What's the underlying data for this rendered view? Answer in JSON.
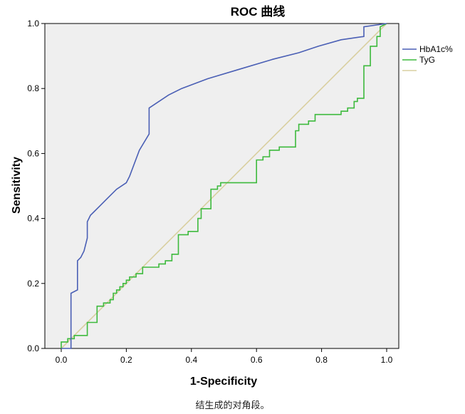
{
  "chart_data": {
    "type": "line",
    "title": "ROC 曲线",
    "xlabel": "1-Specificity",
    "ylabel": "Sensitivity",
    "xlim": [
      0,
      1
    ],
    "ylim": [
      0,
      1
    ],
    "xticks": [
      "0.0",
      "0.2",
      "0.4",
      "0.6",
      "0.8",
      "1.0"
    ],
    "yticks": [
      "0.0",
      "0.2",
      "0.4",
      "0.6",
      "0.8",
      "1.0"
    ],
    "grid": false,
    "legend_position": "right",
    "background": "#efefef",
    "series": [
      {
        "name": "HbA1c%",
        "color": "#4a5fb5",
        "x": [
          0,
          0.03,
          0.03,
          0.03,
          0.05,
          0.05,
          0.06,
          0.07,
          0.08,
          0.08,
          0.09,
          0.1,
          0.12,
          0.14,
          0.17,
          0.2,
          0.21,
          0.24,
          0.27,
          0.27,
          0.3,
          0.33,
          0.37,
          0.45,
          0.55,
          0.65,
          0.73,
          0.79,
          0.86,
          0.93,
          0.93,
          1.0
        ],
        "y": [
          0,
          0,
          0.04,
          0.17,
          0.18,
          0.27,
          0.28,
          0.3,
          0.34,
          0.39,
          0.41,
          0.42,
          0.44,
          0.46,
          0.49,
          0.51,
          0.53,
          0.61,
          0.66,
          0.74,
          0.76,
          0.78,
          0.8,
          0.83,
          0.86,
          0.89,
          0.91,
          0.93,
          0.95,
          0.96,
          0.99,
          1.0
        ]
      },
      {
        "name": "TyG",
        "color": "#3dba3d",
        "x": [
          0,
          0,
          0.02,
          0.02,
          0.04,
          0.04,
          0.08,
          0.08,
          0.11,
          0.11,
          0.13,
          0.13,
          0.15,
          0.15,
          0.16,
          0.16,
          0.17,
          0.17,
          0.18,
          0.18,
          0.19,
          0.19,
          0.2,
          0.2,
          0.21,
          0.21,
          0.23,
          0.23,
          0.25,
          0.25,
          0.3,
          0.3,
          0.32,
          0.32,
          0.34,
          0.34,
          0.36,
          0.36,
          0.39,
          0.39,
          0.42,
          0.42,
          0.43,
          0.43,
          0.46,
          0.46,
          0.48,
          0.48,
          0.49,
          0.49,
          0.6,
          0.6,
          0.62,
          0.62,
          0.64,
          0.64,
          0.67,
          0.67,
          0.72,
          0.72,
          0.73,
          0.73,
          0.76,
          0.76,
          0.78,
          0.78,
          0.86,
          0.86,
          0.88,
          0.88,
          0.9,
          0.9,
          0.91,
          0.91,
          0.93,
          0.93,
          0.95,
          0.95,
          0.97,
          0.97,
          0.98,
          0.98,
          1.0
        ],
        "y": [
          0,
          0.02,
          0.02,
          0.03,
          0.03,
          0.04,
          0.04,
          0.08,
          0.08,
          0.13,
          0.13,
          0.14,
          0.14,
          0.15,
          0.15,
          0.17,
          0.17,
          0.18,
          0.18,
          0.19,
          0.19,
          0.2,
          0.2,
          0.21,
          0.21,
          0.22,
          0.22,
          0.23,
          0.23,
          0.25,
          0.25,
          0.26,
          0.26,
          0.27,
          0.27,
          0.29,
          0.29,
          0.35,
          0.35,
          0.36,
          0.36,
          0.4,
          0.4,
          0.43,
          0.43,
          0.49,
          0.49,
          0.5,
          0.5,
          0.51,
          0.51,
          0.58,
          0.58,
          0.59,
          0.59,
          0.61,
          0.61,
          0.62,
          0.62,
          0.67,
          0.67,
          0.69,
          0.69,
          0.7,
          0.7,
          0.72,
          0.72,
          0.73,
          0.73,
          0.74,
          0.74,
          0.76,
          0.76,
          0.77,
          0.77,
          0.87,
          0.87,
          0.93,
          0.93,
          0.96,
          0.96,
          0.99,
          1.0
        ]
      },
      {
        "name": "",
        "color": "#d9cfa0",
        "x": [
          0,
          1
        ],
        "y": [
          0,
          1
        ]
      }
    ]
  },
  "caption": "结生成的对角段。"
}
